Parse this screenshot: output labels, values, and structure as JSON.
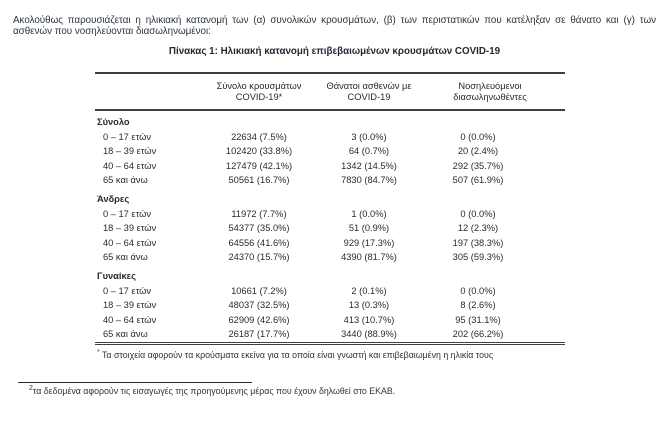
{
  "colors": {
    "text": "#262b34",
    "table_border": "#3f3f3f"
  },
  "intro_paragraph": "Ακολούθως παρουσιάζεται η ηλικιακή κατανομή των (α) συνολικών κρουσμάτων, (β) των περιστατικών που κατέληξαν σε θάνατο και (γ) των ασθενών που νοσηλεύονται διασωληνωμένοι:",
  "table": {
    "title": "Πίνακας 1: Ηλικιακή κατανομή επιβεβαιωμένων κρουσμάτων COVID-19",
    "column_headers": {
      "cases": "Σύνολο κρουσμάτων\nCOVID-19*",
      "deaths": "Θάνατοι ασθενών με\nCOVID-19",
      "intubated": "Νοσηλευόμενοι\nδιασωληνωθέντες"
    },
    "groups": [
      {
        "label": "Σύνολο",
        "rows": [
          {
            "age": "0 – 17 ετών",
            "cases": "22634 (7.5%)",
            "deaths": "3 (0.0%)",
            "intubated": "0 (0.0%)"
          },
          {
            "age": "18 – 39 ετών",
            "cases": "102420 (33.8%)",
            "deaths": "64 (0.7%)",
            "intubated": "20 (2.4%)"
          },
          {
            "age": "40 – 64 ετών",
            "cases": "127479 (42.1%)",
            "deaths": "1342 (14.5%)",
            "intubated": "292 (35.7%)"
          },
          {
            "age": "65 και άνω",
            "cases": "50561 (16.7%)",
            "deaths": "7830 (84.7%)",
            "intubated": "507 (61.9%)"
          }
        ]
      },
      {
        "label": "Άνδρες",
        "rows": [
          {
            "age": "0 – 17 ετών",
            "cases": "11972 (7.7%)",
            "deaths": "1 (0.0%)",
            "intubated": "0 (0.0%)"
          },
          {
            "age": "18 – 39 ετών",
            "cases": "54377 (35.0%)",
            "deaths": "51 (0.9%)",
            "intubated": "12 (2.3%)"
          },
          {
            "age": "40 – 64 ετών",
            "cases": "64556 (41.6%)",
            "deaths": "929 (17.3%)",
            "intubated": "197 (38.3%)"
          },
          {
            "age": "65 και άνω",
            "cases": "24370 (15.7%)",
            "deaths": "4390 (81.7%)",
            "intubated": "305 (59.3%)"
          }
        ]
      },
      {
        "label": "Γυναίκες",
        "rows": [
          {
            "age": "0 – 17 ετών",
            "cases": "10661 (7.2%)",
            "deaths": "2 (0.1%)",
            "intubated": "0 (0.0%)"
          },
          {
            "age": "18 – 39 ετών",
            "cases": "48037 (32.5%)",
            "deaths": "13 (0.3%)",
            "intubated": "8 (2.6%)"
          },
          {
            "age": "40 – 64 ετών",
            "cases": "62909 (42.6%)",
            "deaths": "413 (10.7%)",
            "intubated": "95 (31.1%)"
          },
          {
            "age": "65 και άνω",
            "cases": "26187 (17.7%)",
            "deaths": "3440 (88.9%)",
            "intubated": "202 (66.2%)"
          }
        ]
      }
    ],
    "footnote_marker": "*",
    "footnote_text": " Τα στοιχεία αφορούν τα κρούσματα εκείνα για τα οποία είναι γνωστή και επιβεβαιωμένη η ηλικία τους"
  },
  "page_footnote": {
    "marker": "2",
    "text": "τα δεδομένα αφορούν τις εισαγωγές της προηγούμενης μέρας που έχουν δηλωθεί στο ΕΚΑΒ."
  }
}
